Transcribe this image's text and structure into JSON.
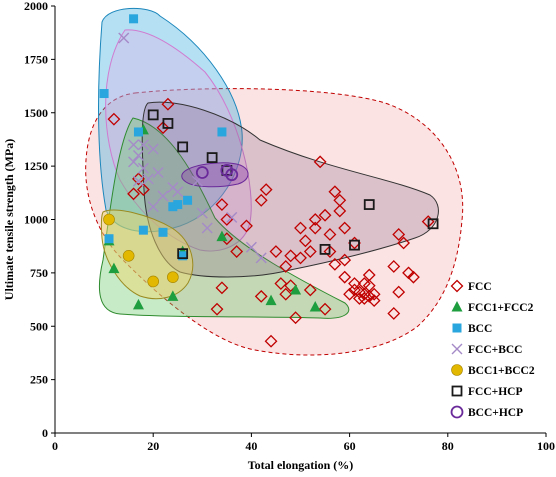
{
  "chart_data": {
    "type": "scatter",
    "title": "",
    "xlabel": "Total elongation (%)",
    "ylabel": "Ultimate tensile strength (MPa)",
    "xlim": [
      0,
      100
    ],
    "ylim": [
      0,
      2000
    ],
    "x_ticks": [
      "0",
      "20",
      "40",
      "60",
      "80",
      "100"
    ],
    "y_ticks": [
      "0",
      "250",
      "500",
      "750",
      "1000",
      "1250",
      "1500",
      "1750",
      "2000"
    ],
    "grid": false,
    "legend_position": "bottom-right",
    "series": [
      {
        "name": "FCC",
        "marker": "diamond",
        "color": "#c00000",
        "points": [
          [
            12,
            1470
          ],
          [
            16,
            1120
          ],
          [
            17,
            1190
          ],
          [
            18,
            1140
          ],
          [
            23,
            1540
          ],
          [
            22,
            1430
          ],
          [
            34,
            1070
          ],
          [
            35,
            1000
          ],
          [
            39,
            970
          ],
          [
            35,
            910
          ],
          [
            34,
            680
          ],
          [
            33,
            580
          ],
          [
            42,
            1090
          ],
          [
            43,
            1140
          ],
          [
            45,
            850
          ],
          [
            46,
            700
          ],
          [
            47,
            780
          ],
          [
            48,
            830
          ],
          [
            49,
            540
          ],
          [
            50,
            960
          ],
          [
            51,
            900
          ],
          [
            52,
            850
          ],
          [
            53,
            1000
          ],
          [
            53,
            960
          ],
          [
            54,
            1270
          ],
          [
            55,
            1020
          ],
          [
            56,
            930
          ],
          [
            56,
            850
          ],
          [
            57,
            790
          ],
          [
            57,
            1130
          ],
          [
            58,
            1090
          ],
          [
            58,
            1040
          ],
          [
            59,
            960
          ],
          [
            59,
            810
          ],
          [
            59,
            730
          ],
          [
            60,
            650
          ],
          [
            61,
            890
          ],
          [
            61,
            700
          ],
          [
            61,
            670
          ],
          [
            62,
            630
          ],
          [
            62,
            660
          ],
          [
            63,
            700
          ],
          [
            63,
            650
          ],
          [
            63,
            630
          ],
          [
            64,
            740
          ],
          [
            64,
            690
          ],
          [
            64,
            640
          ],
          [
            65,
            650
          ],
          [
            65,
            620
          ],
          [
            69,
            780
          ],
          [
            69,
            560
          ],
          [
            70,
            930
          ],
          [
            70,
            660
          ],
          [
            71,
            890
          ],
          [
            72,
            750
          ],
          [
            73,
            730
          ],
          [
            44,
            430
          ],
          [
            42,
            640
          ],
          [
            48,
            690
          ],
          [
            47,
            650
          ],
          [
            50,
            820
          ],
          [
            52,
            670
          ],
          [
            55,
            580
          ],
          [
            37,
            850
          ],
          [
            76,
            990
          ]
        ]
      },
      {
        "name": "FCC1+FCC2",
        "marker": "triangle",
        "color": "#1e9e3e",
        "points": [
          [
            11,
            900
          ],
          [
            12,
            770
          ],
          [
            17,
            600
          ],
          [
            18,
            1420
          ],
          [
            24,
            640
          ],
          [
            26,
            850
          ],
          [
            34,
            920
          ],
          [
            44,
            620
          ],
          [
            49,
            670
          ],
          [
            53,
            590
          ]
        ]
      },
      {
        "name": "BCC",
        "marker": "square",
        "color": "#2aa6de",
        "points": [
          [
            10,
            1590
          ],
          [
            11,
            910
          ],
          [
            16,
            1940
          ],
          [
            18,
            950
          ],
          [
            17,
            1410
          ],
          [
            22,
            940
          ],
          [
            24,
            1060
          ],
          [
            25,
            1070
          ],
          [
            27,
            1090
          ],
          [
            26,
            830
          ],
          [
            34,
            1410
          ]
        ]
      },
      {
        "name": "FCC+BCC",
        "marker": "cross",
        "color": "#a58ac8",
        "points": [
          [
            14,
            1850
          ],
          [
            16,
            1270
          ],
          [
            17,
            1300
          ],
          [
            17,
            1180
          ],
          [
            18,
            1240
          ],
          [
            19,
            1190
          ],
          [
            20,
            1330
          ],
          [
            20,
            1060
          ],
          [
            21,
            1220
          ],
          [
            22,
            1110
          ],
          [
            24,
            1150
          ],
          [
            25,
            1130
          ],
          [
            29,
            1180
          ],
          [
            30,
            1030
          ],
          [
            31,
            960
          ],
          [
            36,
            1010
          ],
          [
            40,
            870
          ],
          [
            42,
            820
          ],
          [
            18,
            1350
          ],
          [
            16,
            1350
          ]
        ]
      },
      {
        "name": "BCC1+BCC2",
        "marker": "circle",
        "color": "#e3b800",
        "points": [
          [
            11,
            1000
          ],
          [
            15,
            830
          ],
          [
            20,
            710
          ],
          [
            24,
            730
          ]
        ]
      },
      {
        "name": "FCC+HCP",
        "marker": "open-square",
        "color": "#1a1a1a",
        "points": [
          [
            20,
            1490
          ],
          [
            23,
            1450
          ],
          [
            26,
            1340
          ],
          [
            26,
            840
          ],
          [
            32,
            1290
          ],
          [
            35,
            1230
          ],
          [
            55,
            860
          ],
          [
            61,
            880
          ],
          [
            64,
            1070
          ],
          [
            77,
            980
          ]
        ]
      },
      {
        "name": "BCC+HCP",
        "marker": "open-circle",
        "color": "#6a2a9a",
        "points": [
          [
            30,
            1220
          ],
          [
            35,
            1230
          ],
          [
            36,
            1210
          ]
        ]
      }
    ]
  }
}
